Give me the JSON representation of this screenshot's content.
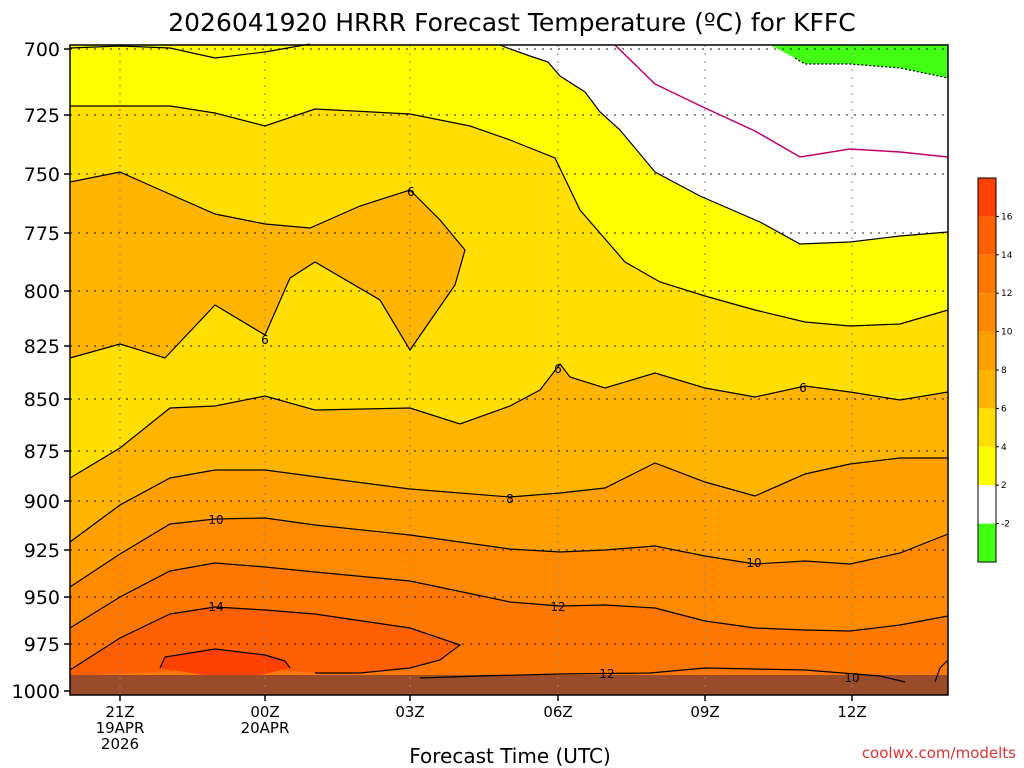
{
  "chart_data": {
    "type": "heatmap",
    "title": "2026041920 HRRR Forecast Temperature (ºC) for KFFC",
    "xlabel": "Forecast Time (UTC)",
    "ylabel": "",
    "credit": "coolwx.com/modelts",
    "y_ticks": [
      "700",
      "725",
      "750",
      "775",
      "800",
      "825",
      "850",
      "875",
      "900",
      "925",
      "950",
      "975",
      "1000"
    ],
    "ylim": [
      1000,
      700
    ],
    "x_ticks": [
      {
        "hour": "21Z",
        "line2": "19APR",
        "line3": "2026"
      },
      {
        "hour": "00Z",
        "line2": "20APR",
        "line3": ""
      },
      {
        "hour": "03Z",
        "line2": "",
        "line3": ""
      },
      {
        "hour": "06Z",
        "line2": "",
        "line3": ""
      },
      {
        "hour": "09Z",
        "line2": "",
        "line3": ""
      },
      {
        "hour": "12Z",
        "line2": "",
        "line3": ""
      }
    ],
    "colorbar": {
      "labels": [
        "16",
        "14",
        "12",
        "10",
        "8",
        "6",
        "4",
        "2",
        "-2"
      ],
      "colors": [
        "#fe4000",
        "#fe5f00",
        "#fe7700",
        "#ff8a00",
        "#ffa000",
        "#ffb400",
        "#ffde00",
        "#ffff00",
        "#ffffff",
        "#43ff13"
      ]
    },
    "contour_labels": [
      "6",
      "6",
      "6",
      "6",
      "8",
      "10",
      "10",
      "12",
      "12",
      "14",
      "10"
    ],
    "fill_colors": {
      "t_le_0": "#43ff13",
      "t_0_2": "#ffffff",
      "t_2_4": "#ffff00",
      "t_4_6": "#ffde00",
      "t_6_8": "#ffb400",
      "t_8_10": "#ffa000",
      "t_10_12": "#ff8a00",
      "t_12_14": "#fe7700",
      "t_14_16": "#fe5f00",
      "t_ge_16": "#fe4000",
      "ground": "#9a4c2a",
      "neg_contour": "#c0006a"
    }
  }
}
